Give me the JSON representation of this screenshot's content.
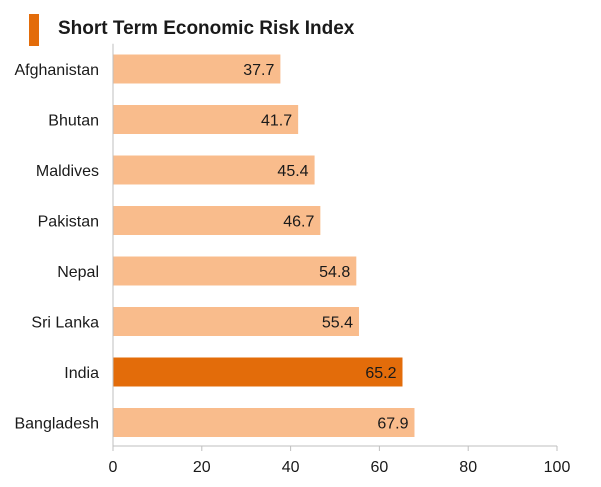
{
  "chart_data": {
    "type": "bar",
    "orientation": "horizontal",
    "title": "Short Term Economic Risk Index",
    "categories": [
      "Afghanistan",
      "Bhutan",
      "Maldives",
      "Pakistan",
      "Nepal",
      "Sri Lanka",
      "India",
      "Bangladesh"
    ],
    "values": [
      37.7,
      41.7,
      45.4,
      46.7,
      54.8,
      55.4,
      65.2,
      67.9
    ],
    "value_labels": [
      "37.7",
      "41.7",
      "45.4",
      "46.7",
      "54.8",
      "55.4",
      "65.2",
      "67.9"
    ],
    "highlighted_category": "India",
    "xlim": [
      0,
      100
    ],
    "x_ticks": [
      0,
      20,
      40,
      60,
      80,
      100
    ],
    "x_tick_labels": [
      "0",
      "20",
      "40",
      "60",
      "80",
      "100"
    ],
    "grid": false,
    "legend": "none"
  },
  "colors": {
    "bar": "#f9bc8c",
    "highlight_bar": "#e36c0a",
    "title_marker": "#e36c0a",
    "text": "#1a1a1a",
    "axis": "#bfbfbf"
  }
}
